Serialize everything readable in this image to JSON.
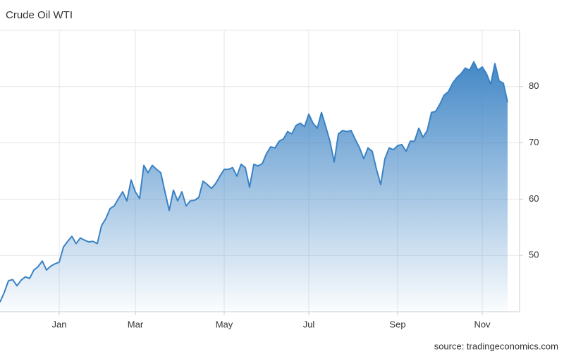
{
  "chart_data": {
    "type": "area",
    "title": "Crude Oil WTI",
    "source": "source: tradingeconomics.com",
    "color": "#3a82c4",
    "grid": true,
    "ylim": [
      40,
      90
    ],
    "yticks": [
      50,
      60,
      70,
      80
    ],
    "categories": [
      null,
      null,
      null,
      null,
      null,
      null,
      null,
      null,
      null,
      null,
      null,
      null,
      null,
      null,
      "Jan",
      null,
      null,
      null,
      null,
      null,
      null,
      null,
      null,
      null,
      null,
      null,
      null,
      null,
      null,
      null,
      null,
      null,
      "Mar",
      null,
      null,
      null,
      null,
      null,
      null,
      null,
      null,
      null,
      null,
      null,
      null,
      null,
      null,
      null,
      null,
      null,
      null,
      null,
      null,
      "May",
      null,
      null,
      null,
      null,
      null,
      null,
      null,
      null,
      null,
      null,
      null,
      null,
      null,
      null,
      null,
      null,
      null,
      null,
      null,
      "Jul",
      null,
      null,
      null,
      null,
      null,
      null,
      null,
      null,
      null,
      null,
      null,
      null,
      null,
      null,
      null,
      null,
      null,
      null,
      null,
      null,
      "Sep",
      null,
      null,
      null,
      null,
      null,
      null,
      null,
      null,
      null,
      null,
      null,
      null,
      null,
      null,
      null,
      null,
      null,
      null,
      null,
      "Nov",
      null,
      null,
      null,
      null,
      null,
      null
    ],
    "values": [
      41.7,
      43.4,
      45.5,
      45.7,
      44.6,
      45.6,
      46.2,
      45.9,
      47.4,
      48.0,
      49.0,
      47.4,
      48.1,
      48.5,
      48.8,
      51.5,
      52.5,
      53.4,
      52.1,
      53.1,
      52.7,
      52.4,
      52.5,
      52.1,
      55.3,
      56.5,
      58.3,
      58.8,
      60.1,
      61.3,
      59.7,
      63.4,
      61.3,
      60.1,
      66.0,
      64.7,
      66.0,
      65.3,
      64.7,
      61.3,
      58.0,
      61.6,
      59.7,
      61.3,
      58.8,
      59.7,
      59.8,
      60.3,
      63.2,
      62.6,
      61.9,
      62.8,
      64.1,
      65.3,
      65.3,
      65.6,
      64.1,
      66.2,
      65.6,
      62.1,
      66.2,
      65.9,
      66.3,
      68.1,
      69.3,
      69.1,
      70.3,
      70.7,
      72.0,
      71.6,
      73.1,
      73.5,
      72.9,
      75.1,
      73.5,
      72.6,
      75.4,
      72.9,
      70.3,
      66.6,
      71.6,
      72.2,
      72.0,
      72.2,
      70.6,
      69.1,
      67.2,
      69.1,
      68.5,
      65.3,
      62.6,
      67.2,
      69.1,
      68.8,
      69.5,
      69.7,
      68.5,
      70.3,
      70.3,
      72.6,
      71.0,
      72.2,
      75.4,
      75.6,
      76.9,
      78.5,
      79.1,
      80.6,
      81.6,
      82.3,
      83.3,
      82.9,
      84.4,
      82.9,
      83.5,
      82.3,
      80.4,
      84.1,
      81.0,
      80.6,
      77.2
    ]
  }
}
